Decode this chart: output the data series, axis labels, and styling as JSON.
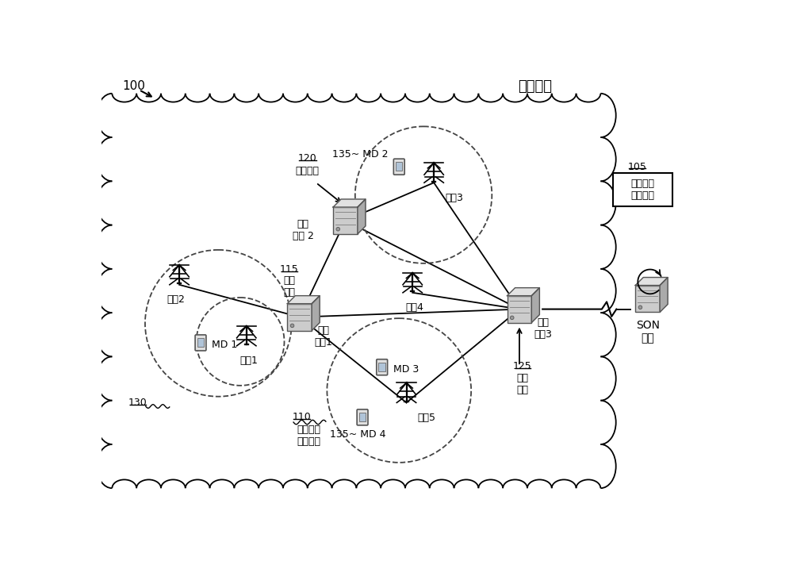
{
  "text_mobile_network": "移动网络",
  "text_collect": "收集网络\n拓扑信息",
  "text_son": "SON\n系统",
  "text_high_traffic": "高吞吐量",
  "text_low_traffic": "低吞\n吐量",
  "text_physical_link": "物理\n链路",
  "text_wireless_coverage": "无线接入\n网络覆盖",
  "text_nr1": "网络\n资源1",
  "text_nr2": "网络\n资源 2",
  "text_nr3": "网络\n资源3",
  "text_bs1": "基站1",
  "text_bs2": "基站2",
  "text_bs3": "基站3",
  "text_bs4": "基站4",
  "text_bs5": "基站5",
  "text_md1": "MD 1",
  "text_md2": "MD 2",
  "text_md3": "MD 3",
  "text_md4": "MD 4",
  "label_100": "100",
  "label_105": "105",
  "label_110": "110",
  "label_115": "115",
  "label_120": "120",
  "label_125": "125",
  "label_130": "130",
  "label_135": "135",
  "bg_color": "#ffffff",
  "line_color": "#000000"
}
